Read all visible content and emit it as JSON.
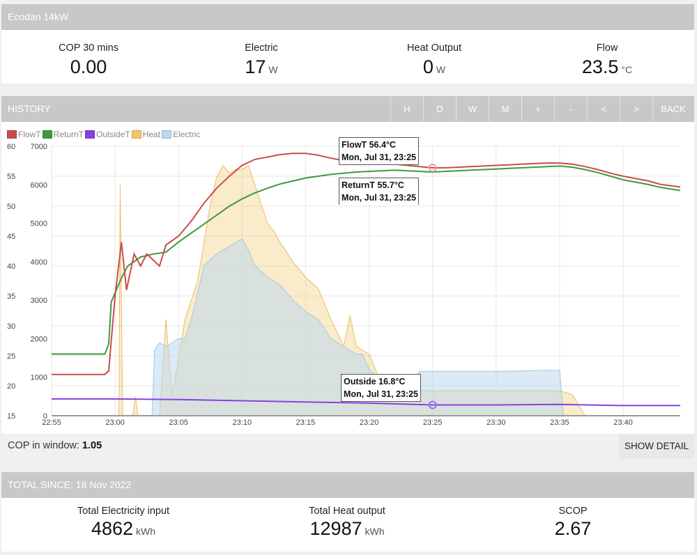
{
  "device": {
    "title": "Ecodan 14kW"
  },
  "stats": [
    {
      "label": "COP 30 mins",
      "value": "0.00",
      "unit": ""
    },
    {
      "label": "Electric",
      "value": "17",
      "unit": "W"
    },
    {
      "label": "Heat Output",
      "value": "0",
      "unit": "W"
    },
    {
      "label": "Flow",
      "value": "23.5",
      "unit": "°C"
    }
  ],
  "history": {
    "title": "HISTORY",
    "buttons": [
      "H",
      "D",
      "W",
      "M",
      "+",
      "-",
      "<",
      ">",
      "BACK"
    ]
  },
  "legend": [
    {
      "label": "FlowT",
      "color": "#c94c4c"
    },
    {
      "label": "ReturnT",
      "color": "#3a9b3a"
    },
    {
      "label": "OutsideT",
      "color": "#8a3fe0"
    },
    {
      "label": "Heat",
      "color": "#f1c66a"
    },
    {
      "label": "Electric",
      "color": "#bcd8ef"
    }
  ],
  "tooltips": {
    "flow": {
      "line1": "FlowT 56.4°C",
      "line2": "Mon, Jul 31, 23:25"
    },
    "ret": {
      "line1": "ReturnT 55.7°C",
      "line2": "Mon, Jul 31, 23:25"
    },
    "outside": {
      "line1": "Outside 16.8°C",
      "line2": "Mon, Jul 31, 23:25"
    }
  },
  "footer": {
    "cop_label": "COP in window:",
    "cop_value": "1.05",
    "show_detail": "SHOW DETAIL"
  },
  "totals": {
    "title": "TOTAL SINCE: 18 Nov 2022",
    "items": [
      {
        "label": "Total Electricity input",
        "value": "4862",
        "unit": "kWh"
      },
      {
        "label": "Total Heat output",
        "value": "12987",
        "unit": "kWh"
      },
      {
        "label": "SCOP",
        "value": "2.67",
        "unit": ""
      }
    ]
  },
  "chart_data": {
    "type": "line",
    "x_ticks": [
      "22:55",
      "23:00",
      "23:05",
      "23:10",
      "23:15",
      "23:20",
      "23:25",
      "23:30",
      "23:35",
      "23:40"
    ],
    "y_left_ticks": [
      15,
      20,
      25,
      30,
      35,
      40,
      45,
      50,
      55,
      60
    ],
    "y_left_range": [
      15,
      60
    ],
    "y_right_ticks": [
      0,
      1000,
      2000,
      3000,
      4000,
      5000,
      6000,
      7000
    ],
    "y_right_range": [
      0,
      7000
    ],
    "grid": true,
    "legend_position": "top-left",
    "series": [
      {
        "name": "FlowT",
        "axis": "temp",
        "color": "#c94c4c",
        "points": [
          [
            -5.0,
            21.9
          ],
          [
            -0.8,
            21.9
          ],
          [
            -0.5,
            22.5
          ],
          [
            0.0,
            35.0
          ],
          [
            0.5,
            44.0
          ],
          [
            0.9,
            36.0
          ],
          [
            1.5,
            42.0
          ],
          [
            2.0,
            40.0
          ],
          [
            2.5,
            42.0
          ],
          [
            3.0,
            41.0
          ],
          [
            3.5,
            40.0
          ],
          [
            4.0,
            43.5
          ],
          [
            5.0,
            45.0
          ],
          [
            6.0,
            47.5
          ],
          [
            7.0,
            50.5
          ],
          [
            8.0,
            53.0
          ],
          [
            9.0,
            55.0
          ],
          [
            10.0,
            56.8
          ],
          [
            11.0,
            57.8
          ],
          [
            12.0,
            58.2
          ],
          [
            13.0,
            58.6
          ],
          [
            14.0,
            58.8
          ],
          [
            15.0,
            58.8
          ],
          [
            16.0,
            58.5
          ],
          [
            17.0,
            58.0
          ],
          [
            18.0,
            57.6
          ],
          [
            19.0,
            57.3
          ],
          [
            20.0,
            57.2
          ],
          [
            21.0,
            57.1
          ],
          [
            22.0,
            57.0
          ],
          [
            23.0,
            56.8
          ],
          [
            24.0,
            56.6
          ],
          [
            25.0,
            56.4
          ],
          [
            26.0,
            56.4
          ],
          [
            27.0,
            56.5
          ],
          [
            28.0,
            56.6
          ],
          [
            29.0,
            56.7
          ],
          [
            30.0,
            56.8
          ],
          [
            31.0,
            56.9
          ],
          [
            32.0,
            57.0
          ],
          [
            33.0,
            57.1
          ],
          [
            34.0,
            57.2
          ],
          [
            35.0,
            57.2
          ],
          [
            36.0,
            57.0
          ],
          [
            37.0,
            56.6
          ],
          [
            38.0,
            56.1
          ],
          [
            39.0,
            55.5
          ],
          [
            40.0,
            55.0
          ],
          [
            41.0,
            54.6
          ],
          [
            42.0,
            54.2
          ],
          [
            43.0,
            53.6
          ],
          [
            44.5,
            53.2
          ]
        ]
      },
      {
        "name": "ReturnT",
        "axis": "temp",
        "color": "#3a9b3a",
        "points": [
          [
            -5.0,
            25.3
          ],
          [
            -0.8,
            25.3
          ],
          [
            -0.5,
            27.0
          ],
          [
            -0.3,
            34.0
          ],
          [
            0.5,
            38.0
          ],
          [
            1.0,
            40.0
          ],
          [
            2.0,
            41.5
          ],
          [
            3.0,
            42.0
          ],
          [
            4.0,
            42.3
          ],
          [
            5.0,
            44.0
          ],
          [
            6.0,
            45.5
          ],
          [
            7.0,
            47.0
          ],
          [
            8.0,
            48.5
          ],
          [
            9.0,
            50.0
          ],
          [
            10.0,
            51.2
          ],
          [
            11.0,
            52.2
          ],
          [
            12.0,
            53.0
          ],
          [
            13.0,
            53.7
          ],
          [
            14.0,
            54.2
          ],
          [
            15.0,
            54.7
          ],
          [
            16.0,
            55.0
          ],
          [
            17.0,
            55.3
          ],
          [
            18.0,
            55.5
          ],
          [
            19.0,
            55.7
          ],
          [
            20.0,
            55.8
          ],
          [
            21.0,
            55.9
          ],
          [
            22.0,
            56.0
          ],
          [
            23.0,
            55.9
          ],
          [
            24.0,
            55.8
          ],
          [
            25.0,
            55.7
          ],
          [
            26.0,
            55.8
          ],
          [
            27.0,
            55.9
          ],
          [
            28.0,
            56.0
          ],
          [
            29.0,
            56.1
          ],
          [
            30.0,
            56.2
          ],
          [
            31.0,
            56.3
          ],
          [
            32.0,
            56.4
          ],
          [
            33.0,
            56.5
          ],
          [
            34.0,
            56.6
          ],
          [
            35.0,
            56.7
          ],
          [
            36.0,
            56.5
          ],
          [
            37.0,
            56.1
          ],
          [
            38.0,
            55.6
          ],
          [
            39.0,
            55.0
          ],
          [
            40.0,
            54.4
          ],
          [
            41.0,
            54.0
          ],
          [
            42.0,
            53.6
          ],
          [
            43.0,
            53.1
          ],
          [
            44.5,
            52.6
          ]
        ]
      },
      {
        "name": "OutsideT",
        "axis": "temp",
        "color": "#8a3fe0",
        "points": [
          [
            -5.0,
            17.8
          ],
          [
            0.0,
            17.8
          ],
          [
            5.0,
            17.7
          ],
          [
            10.0,
            17.5
          ],
          [
            15.0,
            17.3
          ],
          [
            20.0,
            17.1
          ],
          [
            25.0,
            16.8
          ],
          [
            30.0,
            16.8
          ],
          [
            35.0,
            16.9
          ],
          [
            40.0,
            16.7
          ],
          [
            44.5,
            16.7
          ]
        ]
      },
      {
        "name": "Heat",
        "axis": "power",
        "color": "#f1c66a",
        "points": [
          [
            -5.0,
            0
          ],
          [
            0.3,
            0
          ],
          [
            0.4,
            6000
          ],
          [
            0.6,
            0
          ],
          [
            1.4,
            0
          ],
          [
            1.6,
            500
          ],
          [
            1.8,
            0
          ],
          [
            2.0,
            0
          ],
          [
            3.0,
            0
          ],
          [
            3.5,
            0
          ],
          [
            4.0,
            2500
          ],
          [
            4.5,
            500
          ],
          [
            5.0,
            1500
          ],
          [
            5.5,
            2500
          ],
          [
            6.0,
            3000
          ],
          [
            6.5,
            3500
          ],
          [
            7.0,
            4500
          ],
          [
            7.5,
            5500
          ],
          [
            8.0,
            6200
          ],
          [
            8.5,
            6500
          ],
          [
            9.0,
            6300
          ],
          [
            9.5,
            6400
          ],
          [
            10.0,
            6400
          ],
          [
            10.5,
            6500
          ],
          [
            11.0,
            6000
          ],
          [
            11.5,
            5500
          ],
          [
            12.0,
            5000
          ],
          [
            12.5,
            4800
          ],
          [
            13.0,
            4500
          ],
          [
            14.0,
            4000
          ],
          [
            15.0,
            3600
          ],
          [
            16.0,
            3300
          ],
          [
            17.0,
            2500
          ],
          [
            18.0,
            1800
          ],
          [
            18.5,
            2600
          ],
          [
            19.0,
            1800
          ],
          [
            20.0,
            1600
          ],
          [
            20.5,
            1200
          ],
          [
            21.0,
            800
          ],
          [
            22.0,
            700
          ],
          [
            23.0,
            600
          ],
          [
            24.0,
            650
          ],
          [
            25.0,
            650
          ],
          [
            30.0,
            650
          ],
          [
            35.0,
            650
          ],
          [
            36.0,
            550
          ],
          [
            37.0,
            0
          ],
          [
            44.5,
            0
          ]
        ]
      },
      {
        "name": "Electric",
        "axis": "power",
        "color": "#bcd8ef",
        "points": [
          [
            -5.0,
            0
          ],
          [
            2.9,
            0
          ],
          [
            3.0,
            700
          ],
          [
            3.1,
            1700
          ],
          [
            3.5,
            1900
          ],
          [
            4.0,
            1800
          ],
          [
            4.5,
            1900
          ],
          [
            5.0,
            2000
          ],
          [
            5.5,
            2000
          ],
          [
            6.0,
            2500
          ],
          [
            6.5,
            3200
          ],
          [
            7.0,
            3900
          ],
          [
            8.0,
            4200
          ],
          [
            9.0,
            4400
          ],
          [
            10.0,
            4600
          ],
          [
            10.5,
            4300
          ],
          [
            11.0,
            3900
          ],
          [
            12.0,
            3600
          ],
          [
            13.0,
            3400
          ],
          [
            14.0,
            3000
          ],
          [
            15.0,
            2700
          ],
          [
            16.0,
            2500
          ],
          [
            17.0,
            2000
          ],
          [
            18.0,
            1800
          ],
          [
            19.0,
            1600
          ],
          [
            19.5,
            1600
          ],
          [
            20.0,
            1200
          ],
          [
            21.0,
            900
          ],
          [
            22.0,
            900
          ],
          [
            23.0,
            800
          ],
          [
            24.0,
            1150
          ],
          [
            25.0,
            1150
          ],
          [
            30.0,
            1150
          ],
          [
            34.0,
            1180
          ],
          [
            35.0,
            1180
          ],
          [
            35.3,
            0
          ],
          [
            44.5,
            0
          ]
        ]
      }
    ]
  }
}
